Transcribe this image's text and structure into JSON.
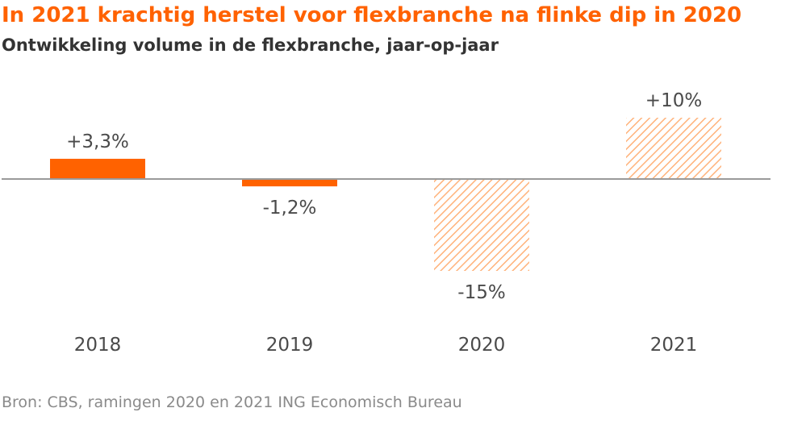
{
  "header": {
    "title": "In 2021 krachtig herstel voor flexbranche na flinke dip in 2020",
    "subtitle": "Ontwikkeling volume in de flexbranche, jaar-op-jaar"
  },
  "footer": {
    "source": "Bron: CBS, ramingen 2020 en 2021 ING Economisch Bureau"
  },
  "colors": {
    "accent": "#ff6200",
    "hatch": "#ffb27a",
    "axis": "#9a9a9a",
    "label": "#4a4a4a"
  },
  "chart_data": {
    "type": "bar",
    "title": "In 2021 krachtig herstel voor flexbranche na flinke dip in 2020",
    "subtitle": "Ontwikkeling volume in de flexbranche, jaar-op-jaar",
    "xlabel": "",
    "ylabel": "",
    "categories": [
      "2018",
      "2019",
      "2020",
      "2021"
    ],
    "values": [
      3.3,
      -1.2,
      -15,
      10
    ],
    "data_labels": [
      "+3,3%",
      "-1,2%",
      "-15%",
      "+10%"
    ],
    "estimate": [
      false,
      false,
      true,
      true
    ],
    "ylim": [
      -15,
      10
    ],
    "grid": false,
    "legend": "none"
  }
}
